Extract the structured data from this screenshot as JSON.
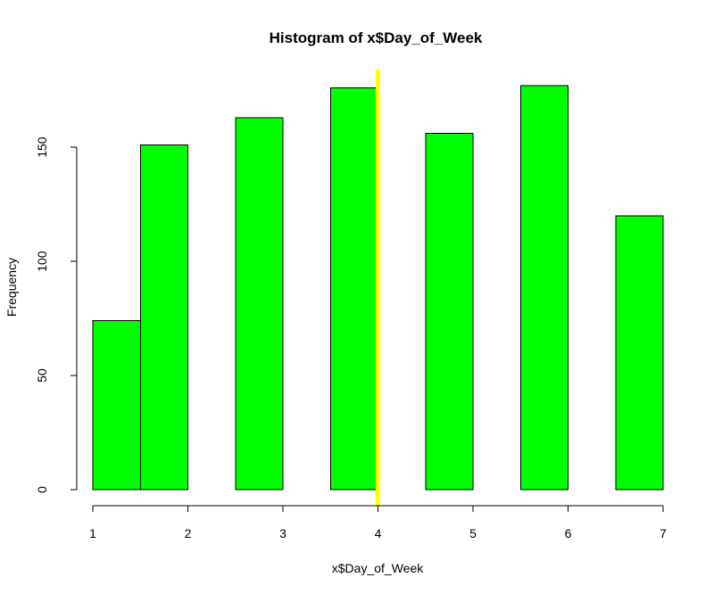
{
  "chart_data": {
    "type": "bar",
    "title": "Histogram of x$Day_of_Week",
    "xlabel": "x$Day_of_Week",
    "ylabel": "Frequency",
    "bins": [
      {
        "start": 1.0,
        "end": 1.5,
        "count": 74
      },
      {
        "start": 1.5,
        "end": 2.0,
        "count": 151
      },
      {
        "start": 2.0,
        "end": 2.5,
        "count": 0
      },
      {
        "start": 2.5,
        "end": 3.0,
        "count": 163
      },
      {
        "start": 3.0,
        "end": 3.5,
        "count": 0
      },
      {
        "start": 3.5,
        "end": 4.0,
        "count": 176
      },
      {
        "start": 4.0,
        "end": 4.5,
        "count": 0
      },
      {
        "start": 4.5,
        "end": 5.0,
        "count": 156
      },
      {
        "start": 5.0,
        "end": 5.5,
        "count": 0
      },
      {
        "start": 5.5,
        "end": 6.0,
        "count": 177
      },
      {
        "start": 6.0,
        "end": 6.5,
        "count": 0
      },
      {
        "start": 6.5,
        "end": 7.0,
        "count": 120
      }
    ],
    "xlim": [
      1,
      7
    ],
    "ylim": [
      0,
      177
    ],
    "xticks": [
      "1",
      "2",
      "3",
      "4",
      "5",
      "6",
      "7"
    ],
    "yticks": [
      "0",
      "50",
      "100",
      "150"
    ],
    "reference_line": {
      "x": 4,
      "color": "#ffff00"
    },
    "bar_color": "#00ff00",
    "grid": false
  }
}
